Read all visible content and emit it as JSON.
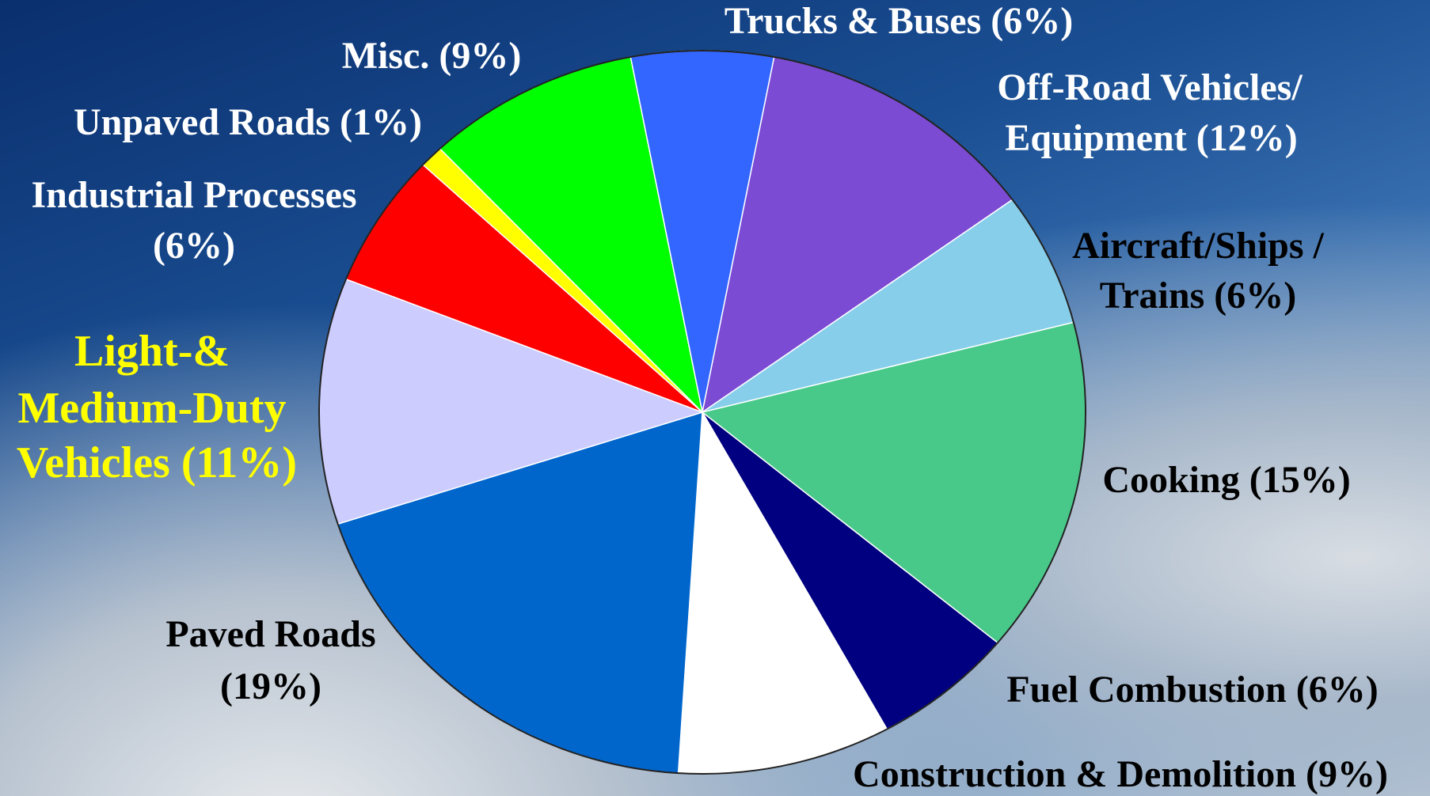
{
  "chart_data": {
    "type": "pie",
    "labels": [
      [
        "Trucks & Buses (6%)"
      ],
      [
        "Off-Road Vehicles/",
        "Equipment (12%)"
      ],
      [
        "Aircraft/Ships /",
        "Trains (6%)"
      ],
      [
        "Cooking (15%)"
      ],
      [
        "Fuel Combustion (6%)"
      ],
      [
        "Construction & Demolition (9%)"
      ],
      [
        "Paved Roads",
        "(19%)"
      ],
      [
        "Light-&",
        "Medium-Duty",
        "Vehicles (11%)"
      ],
      [
        "Industrial Processes",
        "(6%)"
      ],
      [
        "Unpaved Roads (1%)"
      ],
      [
        "Misc. (9%)"
      ]
    ],
    "values": [
      6,
      12,
      6,
      15,
      6,
      9,
      19,
      11,
      6,
      1,
      9
    ],
    "colors": [
      "#3366ff",
      "#7b4bd3",
      "#87ceeb",
      "#48c98a",
      "#000080",
      "#ffffff",
      "#0066cc",
      "#ccccff",
      "#ff0000",
      "#ffff00",
      "#00ff00"
    ],
    "label_colors": [
      "#ffffff",
      "#ffffff",
      "#000000",
      "#000000",
      "#000000",
      "#000000",
      "#000000",
      "#ffff00",
      "#ffffff",
      "#ffffff",
      "#ffffff"
    ]
  }
}
